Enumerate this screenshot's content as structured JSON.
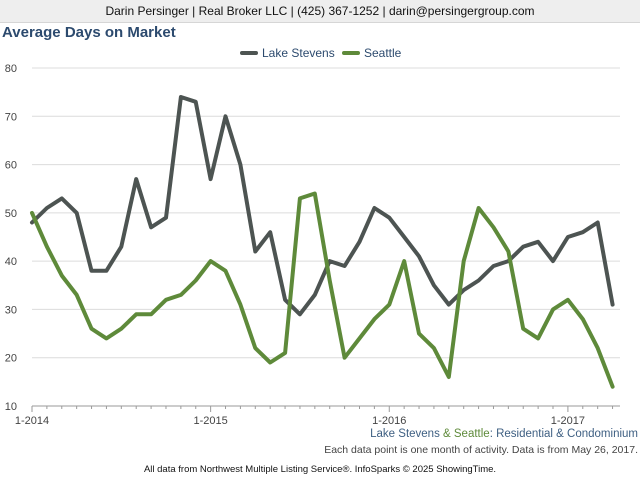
{
  "header": {
    "contact": "Darin Persinger | Real Broker LLC | (425) 367-1252 | darin@persingergroup.com"
  },
  "footer": {
    "series_a": "Lake Stevens",
    "amp": " & ",
    "series_b": "Seattle",
    "suffix": ": Residential & Condominium",
    "note": "Each data point is one month of activity. Data is from May 26, 2017.",
    "source": "All data from Northwest Multiple Listing Service®. InfoSparks © 2025 ShowingTime."
  },
  "colors": {
    "lake_stevens": "#4d5452",
    "seattle": "#5e8a3a",
    "title": "#2c4a6e"
  },
  "chart_data": {
    "type": "line",
    "title": "Average Days on Market",
    "xlabel": "",
    "ylabel": "",
    "ylim": [
      10,
      80
    ],
    "yticks": [
      10,
      20,
      30,
      40,
      50,
      60,
      70,
      80
    ],
    "xticks": [
      "1-2014",
      "1-2015",
      "1-2016",
      "1-2017"
    ],
    "x_start": "1-2014",
    "months": 40,
    "grid": true,
    "legend": "top-center",
    "series": [
      {
        "name": "Lake Stevens",
        "color": "#4d5452",
        "values": [
          48,
          51,
          53,
          50,
          38,
          38,
          43,
          57,
          47,
          49,
          74,
          73,
          57,
          70,
          60,
          42,
          46,
          32,
          29,
          33,
          40,
          39,
          44,
          51,
          49,
          45,
          41,
          35,
          31,
          34,
          36,
          39,
          40,
          43,
          44,
          40,
          45,
          46,
          48,
          31
        ]
      },
      {
        "name": "Seattle",
        "color": "#5e8a3a",
        "values": [
          50,
          43,
          37,
          33,
          26,
          24,
          26,
          29,
          29,
          32,
          33,
          36,
          40,
          38,
          31,
          22,
          19,
          21,
          53,
          54,
          36,
          20,
          24,
          28,
          31,
          40,
          25,
          22,
          16,
          40,
          51,
          47,
          42,
          26,
          24,
          30,
          32,
          28,
          22,
          14
        ]
      }
    ]
  }
}
